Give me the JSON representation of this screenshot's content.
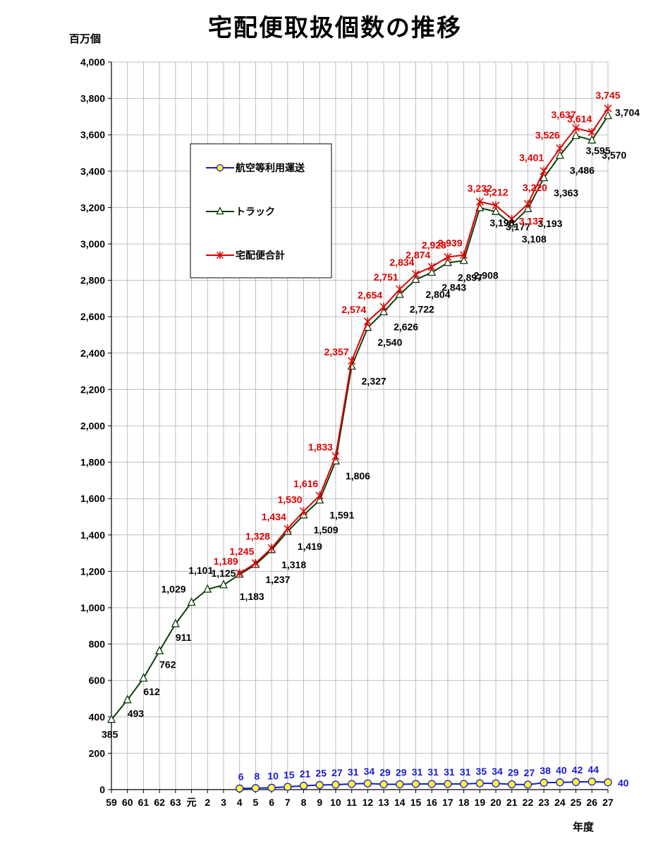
{
  "chart_data": {
    "type": "line",
    "title": "宅配便取扱個数の推移",
    "ylabel": "百万個",
    "xlabel": "年度",
    "ylim": [
      0,
      4000
    ],
    "yticks": [
      0,
      200,
      400,
      600,
      800,
      1000,
      1200,
      1400,
      1600,
      1800,
      2000,
      2200,
      2400,
      2600,
      2800,
      3000,
      3200,
      3400,
      3600,
      3800,
      4000
    ],
    "ytick_labels": [
      "0",
      "200",
      "400",
      "600",
      "800",
      "1,000",
      "1,200",
      "1,400",
      "1,600",
      "1,800",
      "2,000",
      "2,200",
      "2,400",
      "2,600",
      "2,800",
      "3,000",
      "3,200",
      "3,400",
      "3,600",
      "3,800",
      "4,000"
    ],
    "categories": [
      "59",
      "60",
      "61",
      "62",
      "63",
      "元",
      "2",
      "3",
      "4",
      "5",
      "6",
      "7",
      "8",
      "9",
      "10",
      "11",
      "12",
      "13",
      "14",
      "15",
      "16",
      "17",
      "18",
      "19",
      "20",
      "21",
      "22",
      "23",
      "24",
      "25",
      "26",
      "27"
    ],
    "grid": true,
    "legend_position": "upper-left",
    "series": [
      {
        "name": "航空等利用運送",
        "color": "#1a1acc",
        "marker": "circle",
        "values": [
          null,
          null,
          null,
          null,
          null,
          null,
          null,
          null,
          6,
          8,
          10,
          15,
          21,
          25,
          27,
          31,
          34,
          29,
          29,
          31,
          31,
          31,
          31,
          35,
          34,
          29,
          27,
          38,
          40,
          42,
          44,
          40
        ],
        "labels": [
          null,
          null,
          null,
          null,
          null,
          null,
          null,
          null,
          "6",
          "8",
          "10",
          "15",
          "21",
          "25",
          "27",
          "31",
          "34",
          "29",
          "29",
          "31",
          "31",
          "31",
          "31",
          "35",
          "34",
          "29",
          "27",
          "38",
          "40",
          "42",
          "44",
          "40"
        ]
      },
      {
        "name": "トラック",
        "color": "#0a3d0a",
        "marker": "triangle",
        "values": [
          385,
          493,
          612,
          762,
          911,
          1029,
          1101,
          1125,
          1183,
          1237,
          1318,
          1419,
          1509,
          1591,
          1806,
          2327,
          2540,
          2626,
          2722,
          2804,
          2843,
          2897,
          2908,
          3198,
          3177,
          3108,
          3193,
          3363,
          3486,
          3595,
          3570,
          3704
        ],
        "labels": [
          "385",
          "493",
          "612",
          "762",
          "911",
          "1,029",
          "1,101",
          "1,125",
          "1,183",
          "1,237",
          "1,318",
          "1,419",
          "1,509",
          "1,591",
          "1,806",
          "2,327",
          "2,540",
          "2,626",
          "2,722",
          "2,804",
          "2,843",
          "2,897",
          "2,908",
          "3,198",
          "3,177",
          "3,108",
          "3,193",
          "3,363",
          "3,486",
          "3,595",
          "3,570",
          "3,704"
        ]
      },
      {
        "name": "宅配便合計",
        "color": "#e00000",
        "marker": "star",
        "values": [
          null,
          null,
          null,
          null,
          null,
          null,
          null,
          null,
          1189,
          1245,
          1328,
          1434,
          1530,
          1616,
          1833,
          2357,
          2574,
          2654,
          2751,
          2834,
          2874,
          2928,
          2939,
          3232,
          3212,
          3137,
          3220,
          3401,
          3526,
          3637,
          3614,
          3745
        ],
        "labels": [
          null,
          null,
          null,
          null,
          null,
          null,
          null,
          null,
          "1,189",
          "1,245",
          "1,328",
          "1,434",
          "1,530",
          "1,616",
          "1,833",
          "2,357",
          "2,574",
          "2,654",
          "2,751",
          "2,834",
          "2,874",
          "2,928",
          "2,939",
          "3,232",
          "3,212",
          "3,137",
          "3,220",
          "3,401",
          "3,526",
          "3,637",
          "3,614",
          "3,745"
        ]
      }
    ]
  }
}
